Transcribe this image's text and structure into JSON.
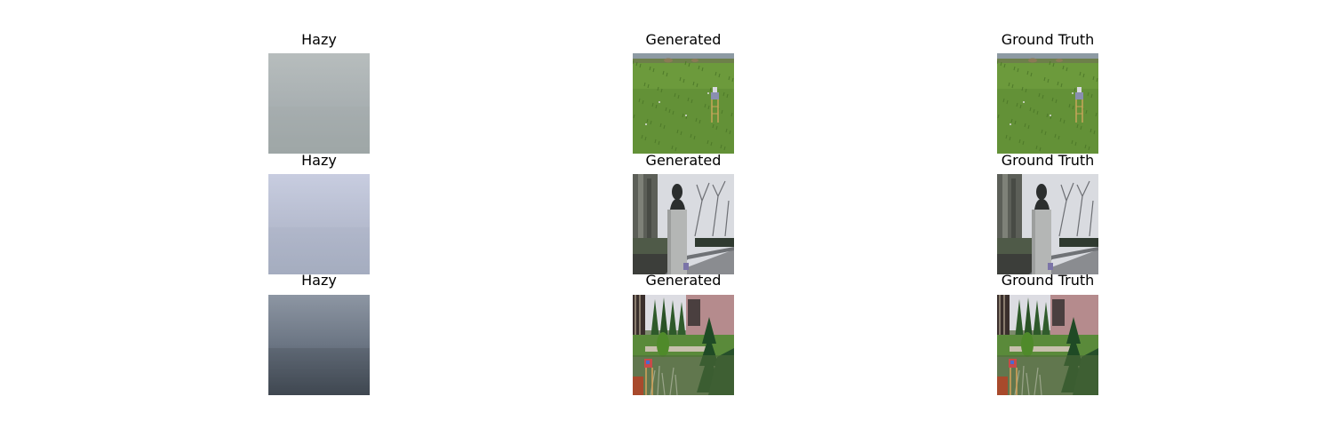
{
  "figure": {
    "rows": [
      {
        "scene": "field",
        "panels": [
          {
            "title": "Hazy",
            "kind": "hazy",
            "haze_colors": [
              "#b7bdbd",
              "#a9b0b2",
              "#9ea6a6"
            ]
          },
          {
            "title": "Generated",
            "kind": "clear"
          },
          {
            "title": "Ground Truth",
            "kind": "clear"
          }
        ]
      },
      {
        "scene": "statue",
        "panels": [
          {
            "title": "Hazy",
            "kind": "hazy",
            "haze_colors": [
              "#c8cde0",
              "#b6bccf",
              "#a5adbf"
            ]
          },
          {
            "title": "Generated",
            "kind": "clear"
          },
          {
            "title": "Ground Truth",
            "kind": "clear"
          }
        ]
      },
      {
        "scene": "garden",
        "panels": [
          {
            "title": "Hazy",
            "kind": "hazy",
            "haze_colors": [
              "#8d96a3",
              "#6b7583",
              "#3f4751"
            ]
          },
          {
            "title": "Generated",
            "kind": "clear"
          },
          {
            "title": "Ground Truth",
            "kind": "clear"
          }
        ]
      }
    ]
  }
}
